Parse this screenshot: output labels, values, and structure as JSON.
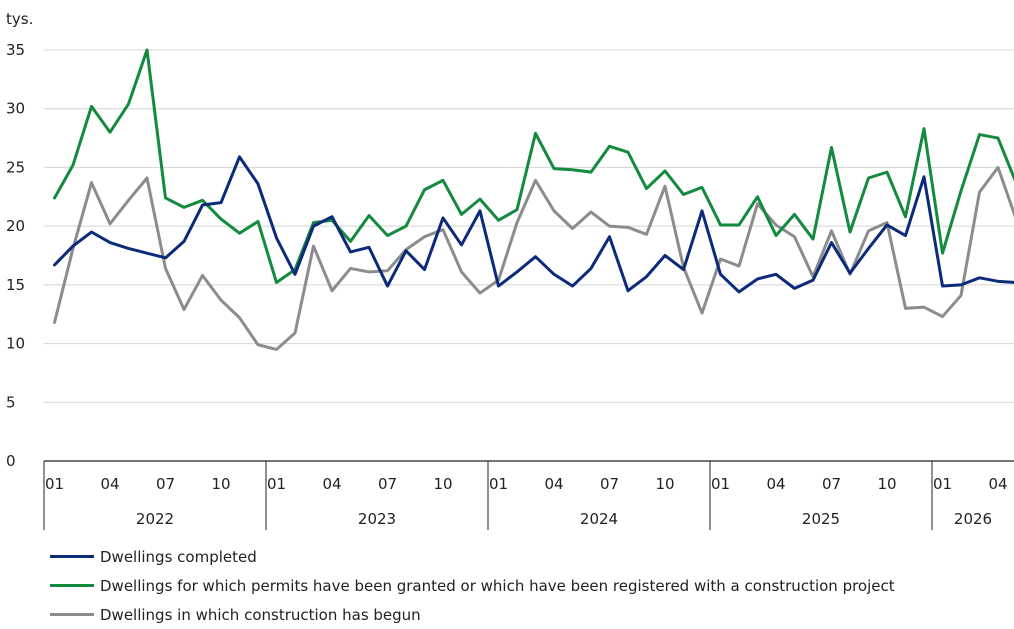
{
  "chart_data": {
    "type": "line",
    "ylabel": "tys.",
    "ylim": [
      0,
      35
    ],
    "yticks": [
      0,
      5,
      10,
      15,
      20,
      25,
      30,
      35
    ],
    "x_month_ticks": [
      "01",
      "04",
      "07",
      "10"
    ],
    "years": [
      "2022",
      "2023",
      "2024",
      "2025",
      "2026"
    ],
    "n_points": 53,
    "grid": true,
    "legend_position": "bottom",
    "series": [
      {
        "name": "Dwellings completed",
        "color": "#0b2a7a",
        "values": [
          16.7,
          18.3,
          19.5,
          18.6,
          18.1,
          17.7,
          17.3,
          18.7,
          21.8,
          22.0,
          25.9,
          23.6,
          19.0,
          15.9,
          20.0,
          20.8,
          17.8,
          18.2,
          14.9,
          17.9,
          16.3,
          20.7,
          18.4,
          21.3,
          14.9,
          16.1,
          17.4,
          15.9,
          14.9,
          16.4,
          19.1,
          14.5,
          15.7,
          17.5,
          16.3,
          21.3,
          15.9,
          14.4,
          15.5,
          15.9,
          14.7,
          15.4,
          18.6,
          16.0,
          18.1,
          20.1,
          19.2,
          24.2,
          14.9,
          15.0,
          15.6,
          15.3,
          15.2
        ]
      },
      {
        "name": "Dwellings for which permits have been granted or which have been registered with a construction project",
        "color": "#138a3e",
        "values": [
          22.4,
          25.2,
          30.2,
          28.0,
          30.4,
          35.0,
          22.4,
          21.6,
          22.2,
          20.6,
          19.4,
          20.4,
          15.2,
          16.3,
          20.3,
          20.5,
          18.7,
          20.9,
          19.2,
          20.0,
          23.1,
          23.9,
          21.0,
          22.3,
          20.5,
          21.4,
          27.9,
          24.9,
          24.8,
          24.6,
          26.8,
          26.3,
          23.2,
          24.7,
          22.7,
          23.3,
          20.1,
          20.1,
          22.5,
          19.2,
          21.0,
          18.9,
          26.7,
          19.5,
          24.1,
          24.6,
          20.8,
          28.3,
          17.7,
          23.0,
          27.8,
          27.5,
          23.6
        ]
      },
      {
        "name": "Dwellings in which construction has begun",
        "color": "#8c8c8c",
        "values": [
          11.8,
          18.1,
          23.7,
          20.2,
          22.2,
          24.1,
          16.4,
          12.9,
          15.8,
          13.7,
          12.2,
          9.9,
          9.5,
          10.9,
          18.3,
          14.5,
          16.4,
          16.1,
          16.2,
          18.0,
          19.1,
          19.7,
          16.1,
          14.3,
          15.4,
          20.3,
          23.9,
          21.3,
          19.8,
          21.2,
          20.0,
          19.9,
          19.3,
          23.4,
          16.5,
          12.6,
          17.2,
          16.6,
          21.9,
          20.1,
          19.1,
          15.7,
          19.6,
          15.9,
          19.6,
          20.3,
          13.0,
          13.1,
          12.3,
          14.1,
          22.9,
          25.0,
          20.5
        ]
      }
    ]
  }
}
